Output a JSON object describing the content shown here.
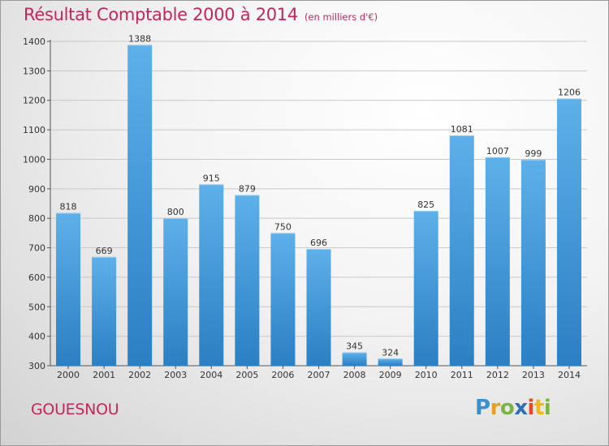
{
  "title": "Résultat Comptable 2000 à 2014",
  "subtitle": "(en milliers d'€)",
  "commune": "GOUESNOU",
  "logo_text": "Proxiti",
  "colors": {
    "title": "#c2275b",
    "bar_top": "#5eb0ea",
    "bar_bottom": "#2b7fc3"
  },
  "chart_data": {
    "type": "bar",
    "title": "Résultat Comptable 2000 à 2014",
    "subtitle": "(en milliers d'€)",
    "xlabel": "",
    "ylabel": "",
    "categories": [
      "2000",
      "2001",
      "2002",
      "2003",
      "2004",
      "2005",
      "2006",
      "2007",
      "2008",
      "2009",
      "2010",
      "2011",
      "2012",
      "2013",
      "2014"
    ],
    "values": [
      818,
      669,
      1388,
      800,
      915,
      879,
      750,
      696,
      345,
      324,
      825,
      1081,
      1007,
      999,
      1206
    ],
    "ylim": [
      300,
      1400
    ],
    "yticks": [
      300,
      400,
      500,
      600,
      700,
      800,
      900,
      1000,
      1100,
      1200,
      1300,
      1400
    ],
    "grid": true,
    "legend": "none"
  }
}
